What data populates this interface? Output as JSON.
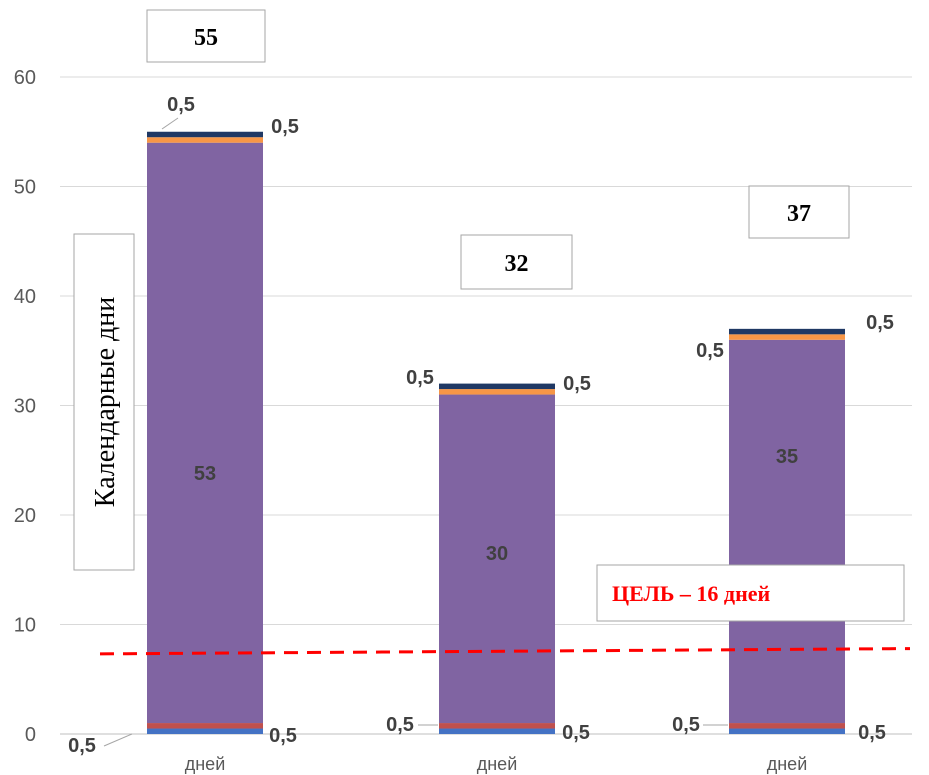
{
  "chart_data": {
    "type": "bar",
    "stacked": true,
    "ylim": [
      0,
      60
    ],
    "yticks": [
      0,
      10,
      20,
      30,
      40,
      50,
      60
    ],
    "grid": true,
    "categories": [
      "дней",
      "дней",
      "дней"
    ],
    "series": [
      {
        "values": [
          0.5,
          0.5,
          0.5
        ],
        "color": "#4472C4",
        "labels": [
          "0,5",
          "0,5",
          "0,5"
        ]
      },
      {
        "values": [
          0.5,
          0.5,
          0.5
        ],
        "color": "#C0504D",
        "labels": [
          "0,5",
          "0,5",
          "0,5"
        ]
      },
      {
        "values": [
          53,
          30,
          35
        ],
        "color": "#8064A2",
        "labels": [
          "53",
          "30",
          "35"
        ]
      },
      {
        "values": [
          0.5,
          0.5,
          0.5
        ],
        "color": "#F79646",
        "labels": [
          "0,5",
          "0,5",
          "0,5"
        ]
      },
      {
        "values": [
          0.5,
          0.5,
          0.5
        ],
        "color": "#1F3864",
        "labels": [
          "0,5",
          "0,5",
          "0,5"
        ]
      }
    ],
    "totals": [
      "55",
      "32",
      "37"
    ],
    "ylabel": "Календарные дни",
    "goal_label": "ЦЕЛЬ – 16 дней",
    "goal_color": "#FF0000",
    "goal_line": [
      7.5,
      7.8
    ]
  }
}
